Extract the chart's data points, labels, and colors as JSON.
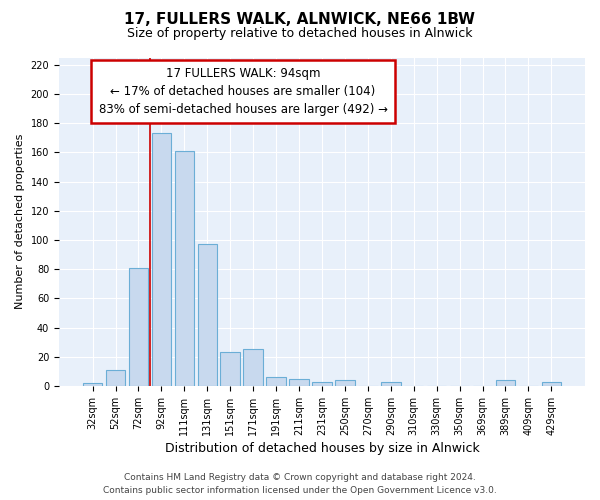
{
  "title": "17, FULLERS WALK, ALNWICK, NE66 1BW",
  "subtitle": "Size of property relative to detached houses in Alnwick",
  "xlabel": "Distribution of detached houses by size in Alnwick",
  "ylabel": "Number of detached properties",
  "categories": [
    "32sqm",
    "52sqm",
    "72sqm",
    "92sqm",
    "111sqm",
    "131sqm",
    "151sqm",
    "171sqm",
    "191sqm",
    "211sqm",
    "231sqm",
    "250sqm",
    "270sqm",
    "290sqm",
    "310sqm",
    "330sqm",
    "350sqm",
    "369sqm",
    "389sqm",
    "409sqm",
    "429sqm"
  ],
  "values": [
    2,
    11,
    81,
    173,
    161,
    97,
    23,
    25,
    6,
    5,
    3,
    4,
    0,
    3,
    0,
    0,
    0,
    0,
    4,
    0,
    3
  ],
  "bar_color": "#c8d9ee",
  "bar_edge_color": "#6baed6",
  "background_color": "#ffffff",
  "plot_bg_color": "#e8f0fa",
  "grid_color": "#ffffff",
  "annotation_box_text_line1": "17 FULLERS WALK: 94sqm",
  "annotation_box_text_line2": "← 17% of detached houses are smaller (104)",
  "annotation_box_text_line3": "83% of semi-detached houses are larger (492) →",
  "annotation_box_edge_color": "#cc0000",
  "annotation_box_bg": "#ffffff",
  "red_line_bar_index": 3,
  "ylim": [
    0,
    225
  ],
  "yticks": [
    0,
    20,
    40,
    60,
    80,
    100,
    120,
    140,
    160,
    180,
    200,
    220
  ],
  "footer_line1": "Contains HM Land Registry data © Crown copyright and database right 2024.",
  "footer_line2": "Contains public sector information licensed under the Open Government Licence v3.0.",
  "title_fontsize": 11,
  "subtitle_fontsize": 9,
  "xlabel_fontsize": 9,
  "ylabel_fontsize": 8,
  "tick_fontsize": 7,
  "ann_fontsize": 8.5,
  "footer_fontsize": 6.5
}
